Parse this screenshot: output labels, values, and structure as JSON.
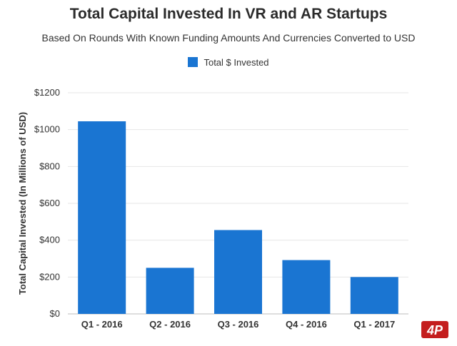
{
  "chart_data": {
    "type": "bar",
    "title": "Total Capital Invested In VR and AR Startups",
    "subtitle": "Based On Rounds With Known Funding Amounts And Currencies Converted to USD",
    "xlabel": "",
    "ylabel": "Total Capital Invested (In Millions of USD)",
    "categories": [
      "Q1 - 2016",
      "Q2 - 2016",
      "Q3 - 2016",
      "Q4 - 2016",
      "Q1 - 2017"
    ],
    "series": [
      {
        "name": "Total $ Invested",
        "values": [
          1045,
          250,
          455,
          292,
          200
        ],
        "color": "#1a75d2"
      }
    ],
    "ylim": [
      0,
      1200
    ],
    "yticks": [
      0,
      200,
      400,
      600,
      800,
      1000,
      1200
    ],
    "ytick_labels": [
      "$0",
      "$200",
      "$400",
      "$600",
      "$800",
      "$1000",
      "$1200"
    ],
    "grid": true,
    "legend_position": "top-center"
  },
  "watermark": {
    "text": "4P",
    "color": "#c41e1e"
  }
}
